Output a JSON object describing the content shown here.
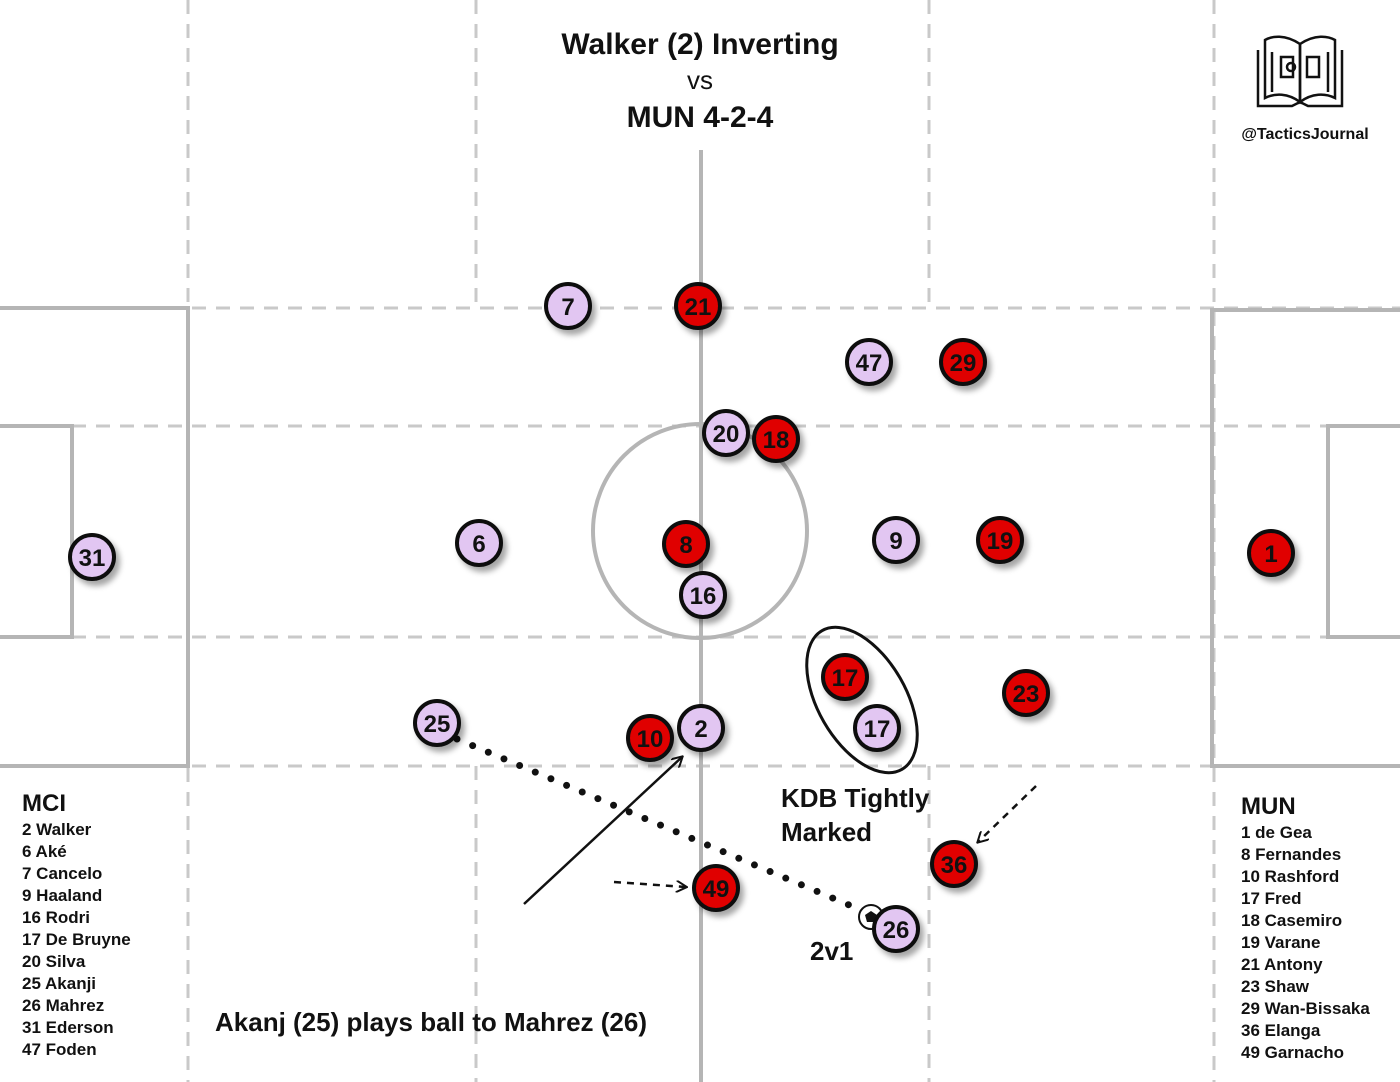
{
  "title": {
    "line1": "Walker (2) Inverting",
    "line2": "vs",
    "line3": "MUN 4-2-4"
  },
  "branding": {
    "handle": "@TacticsJournal",
    "logo_icon": "open-book-pitch-icon"
  },
  "colors": {
    "pitch_lines": "#b8b8b8",
    "zone_lines": "#c8c8c8",
    "mci_fill": "#e2c6f2",
    "mun_fill": "#e00000",
    "marker_stroke": "#111111"
  },
  "players": [
    {
      "team": "MCI",
      "number": "31"
    },
    {
      "team": "MCI",
      "number": "6"
    },
    {
      "team": "MCI",
      "number": "7"
    },
    {
      "team": "MUN",
      "number": "21"
    },
    {
      "team": "MCI",
      "number": "47"
    },
    {
      "team": "MUN",
      "number": "29"
    },
    {
      "team": "MCI",
      "number": "20"
    },
    {
      "team": "MUN",
      "number": "18"
    },
    {
      "team": "MUN",
      "number": "8"
    },
    {
      "team": "MCI",
      "number": "16"
    },
    {
      "team": "MCI",
      "number": "9"
    },
    {
      "team": "MUN",
      "number": "19"
    },
    {
      "team": "MUN",
      "number": "1"
    },
    {
      "team": "MUN",
      "number": "17"
    },
    {
      "team": "MCI",
      "number": "17"
    },
    {
      "team": "MUN",
      "number": "23"
    },
    {
      "team": "MCI",
      "number": "25"
    },
    {
      "team": "MUN",
      "number": "10"
    },
    {
      "team": "MCI",
      "number": "2"
    },
    {
      "team": "MUN",
      "number": "36"
    },
    {
      "team": "MUN",
      "number": "49"
    },
    {
      "team": "MCI",
      "number": "26"
    }
  ],
  "annotations": {
    "kdb": [
      "KDB Tightly",
      "Marked"
    ],
    "two_v_one": "2v1",
    "caption": "Akanj (25) plays ball to Mahrez (26)"
  },
  "rosters": {
    "mci": {
      "heading": "MCI",
      "players": [
        "2 Walker",
        "6 Aké",
        "7 Cancelo",
        "9 Haaland",
        "16 Rodri",
        "17 De Bruyne",
        "20 Silva",
        "25 Akanji",
        "26 Mahrez",
        "31 Ederson",
        "47 Foden"
      ]
    },
    "mun": {
      "heading": "MUN",
      "players": [
        "1 de Gea",
        "8 Fernandes",
        "10 Rashford",
        "17 Fred",
        "18 Casemiro",
        "19 Varane",
        "21 Antony",
        "23 Shaw",
        "29 Wan-Bissaka",
        "36 Elanga",
        "49 Garnacho"
      ]
    }
  }
}
